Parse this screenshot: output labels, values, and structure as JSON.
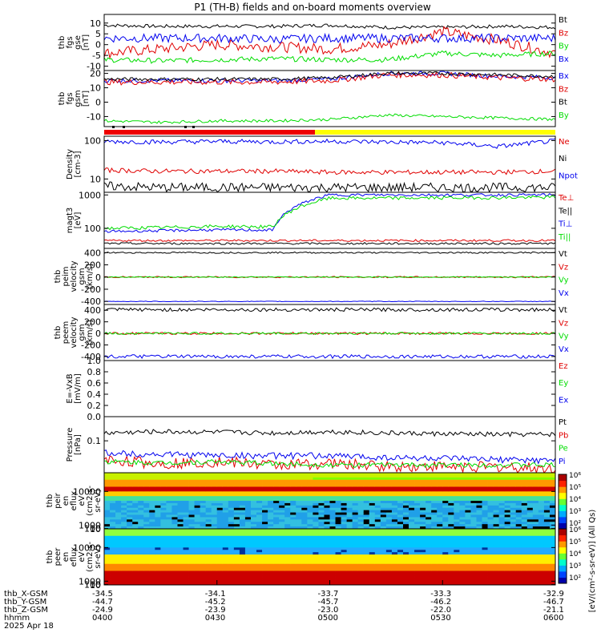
{
  "title": "P1 (TH-B) fields and on-board moments overview",
  "colors": {
    "black": "#000000",
    "red": "#e00000",
    "green": "#00dd00",
    "blue": "#0000ee",
    "yellow": "#ffff00",
    "barred": "#ee0000"
  },
  "chart_data": [
    {
      "id": "fgs_gse",
      "type": "line",
      "ylabel": [
        "thb",
        "fgs",
        "gse",
        "[nT]"
      ],
      "ylim": [
        -12,
        14
      ],
      "yticks": [
        "-10",
        "-5",
        "0",
        "5",
        "10"
      ],
      "tick_values": [
        -10,
        -5,
        0,
        5,
        10
      ],
      "series": [
        {
          "name": "Bt",
          "color": "black",
          "base": [
            9,
            8.5,
            8.5,
            8.5,
            9,
            8,
            8,
            8.5,
            8
          ],
          "noise": 0.8
        },
        {
          "name": "Bz",
          "color": "red",
          "base": [
            -4,
            -2,
            0,
            -1,
            -2,
            0,
            6,
            2,
            -4
          ],
          "noise": 2.5
        },
        {
          "name": "By",
          "color": "green",
          "base": [
            -7,
            -7.5,
            -7,
            -6.5,
            -7,
            -7,
            -4,
            -5,
            -4
          ],
          "noise": 1.2
        },
        {
          "name": "Bx",
          "color": "blue",
          "base": [
            3,
            3,
            3,
            2.5,
            3,
            3,
            3,
            3,
            3
          ],
          "noise": 2.0
        }
      ]
    },
    {
      "id": "fgs_gsm",
      "type": "line",
      "ylabel": [
        "thb",
        "fgs",
        "gsm",
        "[nT]"
      ],
      "ylim": [
        -17,
        22
      ],
      "yticks": [
        "-10",
        "0",
        "10",
        "20"
      ],
      "tick_values": [
        -10,
        0,
        10,
        20
      ],
      "series": [
        {
          "name": "Bx",
          "color": "blue",
          "base": [
            15,
            15,
            15,
            15,
            16,
            20,
            20,
            18,
            17
          ],
          "noise": 1.5
        },
        {
          "name": "Bz",
          "color": "red",
          "base": [
            14,
            14,
            14,
            14,
            15,
            19,
            19,
            17,
            16
          ],
          "noise": 2.0
        },
        {
          "name": "Bt",
          "color": "black",
          "base": [
            16,
            16,
            16,
            16,
            17,
            20,
            20,
            19,
            18
          ],
          "noise": 1.2
        },
        {
          "name": "By",
          "color": "green",
          "base": [
            -13,
            -14,
            -13,
            -13,
            -12,
            -9,
            -10,
            -11,
            -12
          ],
          "noise": 1.0
        }
      ]
    },
    {
      "id": "density",
      "type": "line",
      "log": true,
      "ylabel": [
        "Density",
        "[cm-3]"
      ],
      "ylim": [
        4.5,
        130
      ],
      "yticks": [
        "10",
        "100"
      ],
      "tick_values": [
        10,
        100
      ],
      "series": [
        {
          "name": "Ne",
          "color": "red",
          "base": [
            17,
            16,
            16,
            16,
            15,
            15,
            15,
            15,
            16
          ],
          "noise": 0.06
        },
        {
          "name": "Ni",
          "color": "black",
          "base": [
            6.5,
            6,
            6,
            6,
            6,
            6,
            6,
            6,
            6
          ],
          "noise": 0.12
        },
        {
          "name": "Npot",
          "color": "blue",
          "base": [
            95,
            92,
            95,
            93,
            96,
            92,
            88,
            70,
            98
          ],
          "noise": 0.06
        }
      ]
    },
    {
      "id": "temperature",
      "type": "line",
      "log": true,
      "ylabel": [
        "magt3",
        "[eV]"
      ],
      "ylim": [
        25,
        1200
      ],
      "yticks": [
        "100",
        "1000"
      ],
      "tick_values": [
        100,
        1000
      ],
      "series": [
        {
          "name": "Te⊥",
          "color": "red",
          "base": [
            43,
            43,
            43,
            43,
            43,
            43,
            43,
            43,
            43
          ],
          "noise": 0.03
        },
        {
          "name": "Te||",
          "color": "black",
          "base": [
            35,
            35,
            35,
            35,
            35,
            35,
            35,
            35,
            35
          ],
          "noise": 0.03
        },
        {
          "name": "Ti⊥",
          "color": "blue",
          "base": [
            80,
            85,
            90,
            88,
            1000,
            1000,
            1000,
            1000,
            1000
          ],
          "noise": 0.04
        },
        {
          "name": "Ti||",
          "color": "green",
          "base": [
            100,
            105,
            115,
            110,
            800,
            800,
            820,
            830,
            850
          ],
          "noise": 0.05
        }
      ]
    },
    {
      "id": "peim",
      "type": "line",
      "ylabel": [
        "thb",
        "peim",
        "velocity",
        "gsm",
        "[km/s]"
      ],
      "ylim": [
        -450,
        470
      ],
      "yticks": [
        "-400",
        "-200",
        "0",
        "200",
        "400"
      ],
      "tick_values": [
        -400,
        -200,
        0,
        200,
        400
      ],
      "series": [
        {
          "name": "Vt",
          "color": "black",
          "base": [
            400,
            400,
            400,
            400,
            400,
            400,
            400,
            400,
            400
          ],
          "noise": 12
        },
        {
          "name": "Vz",
          "color": "red",
          "base": [
            0,
            0,
            0,
            0,
            0,
            0,
            0,
            0,
            0
          ],
          "noise": 12
        },
        {
          "name": "Vy",
          "color": "green",
          "base": [
            0,
            0,
            0,
            0,
            0,
            0,
            0,
            0,
            0
          ],
          "noise": 8
        },
        {
          "name": "Vx",
          "color": "blue",
          "base": [
            -400,
            -400,
            -400,
            -400,
            -400,
            -400,
            -400,
            -400,
            -400
          ],
          "noise": 5
        }
      ]
    },
    {
      "id": "peem",
      "type": "line",
      "ylabel": [
        "thb",
        "peem",
        "velocity",
        "gsm",
        "[km/s]"
      ],
      "ylim": [
        -470,
        500
      ],
      "yticks": [
        "-400",
        "-200",
        "0",
        "200",
        "400"
      ],
      "tick_values": [
        -400,
        -200,
        0,
        200,
        400
      ],
      "series": [
        {
          "name": "Vt",
          "color": "black",
          "base": [
            410,
            410,
            410,
            410,
            410,
            410,
            410,
            410,
            410
          ],
          "noise": 30
        },
        {
          "name": "Vz",
          "color": "red",
          "base": [
            0,
            0,
            0,
            0,
            0,
            0,
            0,
            0,
            0
          ],
          "noise": 20
        },
        {
          "name": "Vy",
          "color": "green",
          "base": [
            0,
            0,
            0,
            0,
            0,
            0,
            0,
            0,
            0
          ],
          "noise": 20
        },
        {
          "name": "Vx",
          "color": "blue",
          "base": [
            -400,
            -400,
            -400,
            -400,
            -400,
            -400,
            -400,
            -400,
            -400
          ],
          "noise": 30
        }
      ]
    },
    {
      "id": "efield",
      "type": "line",
      "ylabel": [
        "E=-VxB",
        "[mV/m]"
      ],
      "ylim": [
        0,
        1
      ],
      "yticks": [
        "0.0",
        "0.2",
        "0.4",
        "0.6",
        "0.8",
        "1.0"
      ],
      "tick_values": [
        0,
        0.2,
        0.4,
        0.6,
        0.8,
        1.0
      ],
      "series": [
        {
          "name": "Ez",
          "color": "red",
          "base": [],
          "noise": 0
        },
        {
          "name": "Ey",
          "color": "green",
          "base": [],
          "noise": 0
        },
        {
          "name": "Ex",
          "color": "blue",
          "base": [],
          "noise": 0
        }
      ]
    },
    {
      "id": "pressure",
      "type": "line",
      "log": true,
      "ylabel": [
        "Pressure",
        "[nPa]"
      ],
      "ylim": [
        0.04,
        0.2
      ],
      "yticks": [
        "0.1"
      ],
      "tick_values": [
        0.1
      ],
      "series": [
        {
          "name": "Pt",
          "color": "black",
          "base": [
            0.125,
            0.13,
            0.128,
            0.125,
            0.13,
            0.125,
            0.122,
            0.12,
            0.12
          ],
          "noise": 0.03
        },
        {
          "name": "Pb",
          "color": "red",
          "base": [
            0.058,
            0.052,
            0.055,
            0.05,
            0.052,
            0.048,
            0.048,
            0.047,
            0.045
          ],
          "noise": 0.07
        },
        {
          "name": "Pe",
          "color": "green",
          "base": [
            0.055,
            0.053,
            0.055,
            0.052,
            0.05,
            0.05,
            0.05,
            0.05,
            0.05
          ],
          "noise": 0.03
        },
        {
          "name": "Pi",
          "color": "blue",
          "base": [
            0.07,
            0.068,
            0.066,
            0.065,
            0.065,
            0.062,
            0.06,
            0.058,
            0.057
          ],
          "noise": 0.04
        }
      ]
    },
    {
      "id": "peir",
      "type": "heatmap",
      "ylabel": [
        "thb",
        "peir",
        "en",
        "eflux",
        "eV",
        "(cm2-s-",
        "sr-eV)"
      ],
      "ylim": [
        7,
        15000
      ],
      "yticks": [
        "10",
        "100",
        "1000",
        "10000"
      ],
      "tick_values": [
        10,
        100,
        1000,
        10000
      ]
    },
    {
      "id": "peer",
      "type": "heatmap",
      "ylabel": [
        "thb",
        "peer",
        "en",
        "eflux",
        "eV",
        "(cm2-s-",
        "sr-eV)"
      ],
      "ylim": [
        7,
        15000
      ],
      "yticks": [
        "10",
        "100",
        "1000",
        "10000"
      ],
      "tick_values": [
        10,
        100,
        1000,
        10000
      ]
    }
  ],
  "colorbar": {
    "ticks": [
      "10²",
      "10³",
      "10⁴",
      "10⁵",
      "10⁶"
    ],
    "label": "[eV/(cm²-s-sr-eV)] (All Qs)"
  },
  "time_axis": {
    "rows": [
      {
        "label": "thb_X-GSM",
        "values": [
          "-34.5",
          "-34.1",
          "-33.7",
          "-33.3",
          "-32.9"
        ]
      },
      {
        "label": "thb_Y-GSM",
        "values": [
          "-44.7",
          "-45.2",
          "-45.7",
          "-46.2",
          "-46.7"
        ]
      },
      {
        "label": "thb_Z-GSM",
        "values": [
          "-24.9",
          "-23.9",
          "-23.0",
          "-22.0",
          "-21.1"
        ]
      },
      {
        "label": "hhmm",
        "values": [
          "0400",
          "0430",
          "0500",
          "0530",
          "0600"
        ]
      }
    ],
    "date": "2025 Apr 18"
  }
}
